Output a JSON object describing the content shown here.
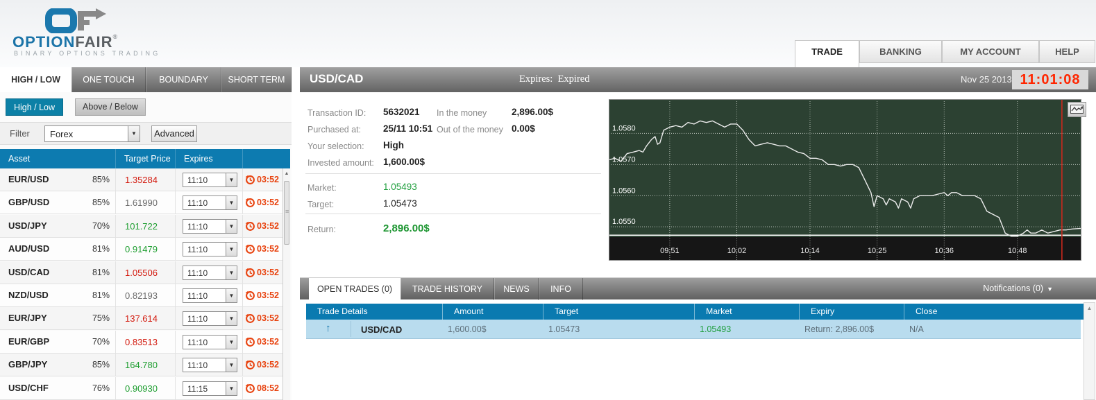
{
  "brand": {
    "name_primary": "OPTION",
    "name_secondary": "FAIR",
    "registered": "®",
    "tagline": "BINARY OPTIONS TRADING"
  },
  "top_nav": {
    "items": [
      {
        "label": "TRADE",
        "active": true
      },
      {
        "label": "BANKING",
        "active": false
      },
      {
        "label": "MY ACCOUNT",
        "active": false
      },
      {
        "label": "HELP",
        "active": false
      }
    ]
  },
  "masthead": {
    "date": "Nov 25 2013",
    "clock": "11:01:08"
  },
  "instrument_tabs": {
    "items": [
      {
        "label": "HIGH / LOW",
        "active": true
      },
      {
        "label": "ONE TOUCH",
        "active": false
      },
      {
        "label": "BOUNDARY",
        "active": false
      },
      {
        "label": "SHORT TERM",
        "active": false
      }
    ]
  },
  "left_panel": {
    "mode_tabs": [
      {
        "label": "High / Low",
        "active": true
      },
      {
        "label": "Above / Below",
        "active": false
      }
    ],
    "filter": {
      "label": "Filter",
      "value": "Forex",
      "advanced_label": "Advanced"
    },
    "asset_table": {
      "headers": [
        "Asset",
        "Target Price",
        "Expires"
      ],
      "rows": [
        {
          "asset": "EUR/USD",
          "payout": "85%",
          "price": "1.35284",
          "direction": "down",
          "expiry": "11:10",
          "countdown": "03:52"
        },
        {
          "asset": "GBP/USD",
          "payout": "85%",
          "price": "1.61990",
          "direction": "neutral",
          "expiry": "11:10",
          "countdown": "03:52"
        },
        {
          "asset": "USD/JPY",
          "payout": "70%",
          "price": "101.722",
          "direction": "up",
          "expiry": "11:10",
          "countdown": "03:52"
        },
        {
          "asset": "AUD/USD",
          "payout": "81%",
          "price": "0.91479",
          "direction": "up",
          "expiry": "11:10",
          "countdown": "03:52"
        },
        {
          "asset": "USD/CAD",
          "payout": "81%",
          "price": "1.05506",
          "direction": "down",
          "expiry": "11:10",
          "countdown": "03:52"
        },
        {
          "asset": "NZD/USD",
          "payout": "81%",
          "price": "0.82193",
          "direction": "neutral",
          "expiry": "11:10",
          "countdown": "03:52"
        },
        {
          "asset": "EUR/JPY",
          "payout": "75%",
          "price": "137.614",
          "direction": "down",
          "expiry": "11:10",
          "countdown": "03:52"
        },
        {
          "asset": "EUR/GBP",
          "payout": "70%",
          "price": "0.83513",
          "direction": "down",
          "expiry": "11:10",
          "countdown": "03:52"
        },
        {
          "asset": "GBP/JPY",
          "payout": "85%",
          "price": "164.780",
          "direction": "up",
          "expiry": "11:10",
          "countdown": "03:52"
        },
        {
          "asset": "USD/CHF",
          "payout": "76%",
          "price": "0.90930",
          "direction": "up",
          "expiry": "11:15",
          "countdown": "08:52"
        }
      ]
    }
  },
  "trade_panel": {
    "title": "USD/CAD",
    "expires_label": "Expires:",
    "expires_value": "Expired",
    "fields": {
      "transaction_id": {
        "label": "Transaction ID:",
        "value": "5632021"
      },
      "purchased": {
        "label": "Purchased at:",
        "value": "25/11 10:51"
      },
      "selection": {
        "label": "Your selection:",
        "value": "High"
      },
      "invested": {
        "label": "Invested amount:",
        "value": "1,600.00$"
      },
      "in_the_money": {
        "label": "In the money",
        "value": "2,896.00$"
      },
      "out_of_the_money": {
        "label": "Out of the money",
        "value": "0.00$"
      },
      "market": {
        "label": "Market:",
        "value": "1.05493"
      },
      "target": {
        "label": "Target:",
        "value": "1.05473"
      },
      "return": {
        "label": "Return:",
        "value": "2,896.00$"
      }
    }
  },
  "chart_data": {
    "type": "line",
    "title": "USD/CAD intraday price",
    "ylim": [
      1.05467,
      1.0591
    ],
    "x_domain_minutes": [
      0,
      77.5
    ],
    "yticks": [
      1.058,
      1.057,
      1.056,
      1.055
    ],
    "xticks": [
      {
        "t": 10,
        "label": "09:51"
      },
      {
        "t": 21,
        "label": "10:02"
      },
      {
        "t": 33,
        "label": "10:14"
      },
      {
        "t": 44,
        "label": "10:25"
      },
      {
        "t": 55,
        "label": "10:36"
      },
      {
        "t": 67,
        "label": "10:48"
      }
    ],
    "target_line": 1.05473,
    "expiry_marker_t": 74.3,
    "grid": true,
    "colors": {
      "plot_bg": "#2c4132",
      "axis_bg": "#161616",
      "line": "#ececec",
      "target_line": "#ffffff",
      "expiry_marker": "#c9281c"
    },
    "series": [
      {
        "name": "USD/CAD",
        "points": [
          [
            0,
            1.05715
          ],
          [
            1,
            1.0572
          ],
          [
            2,
            1.0571
          ],
          [
            3,
            1.05735
          ],
          [
            4,
            1.0574
          ],
          [
            5,
            1.05745
          ],
          [
            5.6,
            1.0574
          ],
          [
            6.2,
            1.0576
          ],
          [
            7,
            1.0578
          ],
          [
            7.6,
            1.0579
          ],
          [
            8,
            1.05765
          ],
          [
            8.4,
            1.0577
          ],
          [
            9,
            1.0581
          ],
          [
            10,
            1.0582
          ],
          [
            11,
            1.05825
          ],
          [
            12,
            1.0582
          ],
          [
            13,
            1.05835
          ],
          [
            14,
            1.0583
          ],
          [
            15,
            1.0584
          ],
          [
            16,
            1.05835
          ],
          [
            17,
            1.0584
          ],
          [
            18,
            1.0583
          ],
          [
            19,
            1.0582
          ],
          [
            20,
            1.0583
          ],
          [
            21,
            1.0583
          ],
          [
            22,
            1.0581
          ],
          [
            23,
            1.0578
          ],
          [
            24,
            1.0576
          ],
          [
            25,
            1.05765
          ],
          [
            26,
            1.0577
          ],
          [
            27,
            1.05765
          ],
          [
            28,
            1.0576
          ],
          [
            29,
            1.0576
          ],
          [
            30,
            1.0575
          ],
          [
            31,
            1.0574
          ],
          [
            32,
            1.05735
          ],
          [
            33,
            1.0572
          ],
          [
            34,
            1.0572
          ],
          [
            35,
            1.05715
          ],
          [
            36,
            1.057
          ],
          [
            37,
            1.057
          ],
          [
            38,
            1.05695
          ],
          [
            39,
            1.057
          ],
          [
            40,
            1.057
          ],
          [
            41,
            1.0569
          ],
          [
            42,
            1.0565
          ],
          [
            43,
            1.0561
          ],
          [
            43.5,
            1.05565
          ],
          [
            44,
            1.056
          ],
          [
            45,
            1.0559
          ],
          [
            45.5,
            1.0557
          ],
          [
            46,
            1.0559
          ],
          [
            47,
            1.0558
          ],
          [
            47.5,
            1.0556
          ],
          [
            48,
            1.0559
          ],
          [
            49,
            1.0558
          ],
          [
            49.5,
            1.0556
          ],
          [
            50,
            1.0559
          ],
          [
            51,
            1.056
          ],
          [
            52,
            1.056
          ],
          [
            53,
            1.056
          ],
          [
            54,
            1.05605
          ],
          [
            55,
            1.0561
          ],
          [
            55.6,
            1.056
          ],
          [
            56.2,
            1.0561
          ],
          [
            57,
            1.0561
          ],
          [
            58,
            1.056
          ],
          [
            59,
            1.056
          ],
          [
            60,
            1.056
          ],
          [
            61,
            1.0559
          ],
          [
            62,
            1.0555
          ],
          [
            63,
            1.0554
          ],
          [
            64,
            1.0553
          ],
          [
            65,
            1.0548
          ],
          [
            66,
            1.0547
          ],
          [
            67,
            1.0547
          ],
          [
            68,
            1.0548
          ],
          [
            68.6,
            1.0549
          ],
          [
            69.2,
            1.0548
          ],
          [
            70,
            1.0548
          ],
          [
            71,
            1.0549
          ],
          [
            72,
            1.0548
          ],
          [
            73,
            1.05485
          ],
          [
            74,
            1.0549
          ],
          [
            75,
            1.0549
          ],
          [
            76,
            1.05493
          ],
          [
            77.5,
            1.05495
          ]
        ]
      }
    ]
  },
  "bottom_panel": {
    "tabs": [
      {
        "label": "OPEN TRADES (0)",
        "active": true
      },
      {
        "label": "TRADE HISTORY",
        "active": false
      },
      {
        "label": "NEWS",
        "active": false
      },
      {
        "label": "INFO",
        "active": false
      }
    ],
    "notifications_label": "Notifications (0)",
    "table": {
      "headers": [
        "Trade Details",
        "Amount",
        "Target",
        "Market",
        "Expiry",
        "Close"
      ],
      "rows": [
        {
          "direction": "up",
          "asset": "USD/CAD",
          "amount": "1,600.00$",
          "target": "1.05473",
          "market": "1.05493",
          "expiry": "Return: 2,896.00$",
          "close": "N/A"
        }
      ]
    }
  },
  "colors": {
    "accent_blue": "#0d7bb0",
    "teal_button": "#0c80a6",
    "price_up": "#1e9e30",
    "price_down": "#d31a0e",
    "price_neutral": "#6b6b6b",
    "countdown": "#e8420e",
    "clock_text": "#ff2600",
    "row_highlight": "#b9dcee",
    "chart_bg": "#2c4132"
  }
}
